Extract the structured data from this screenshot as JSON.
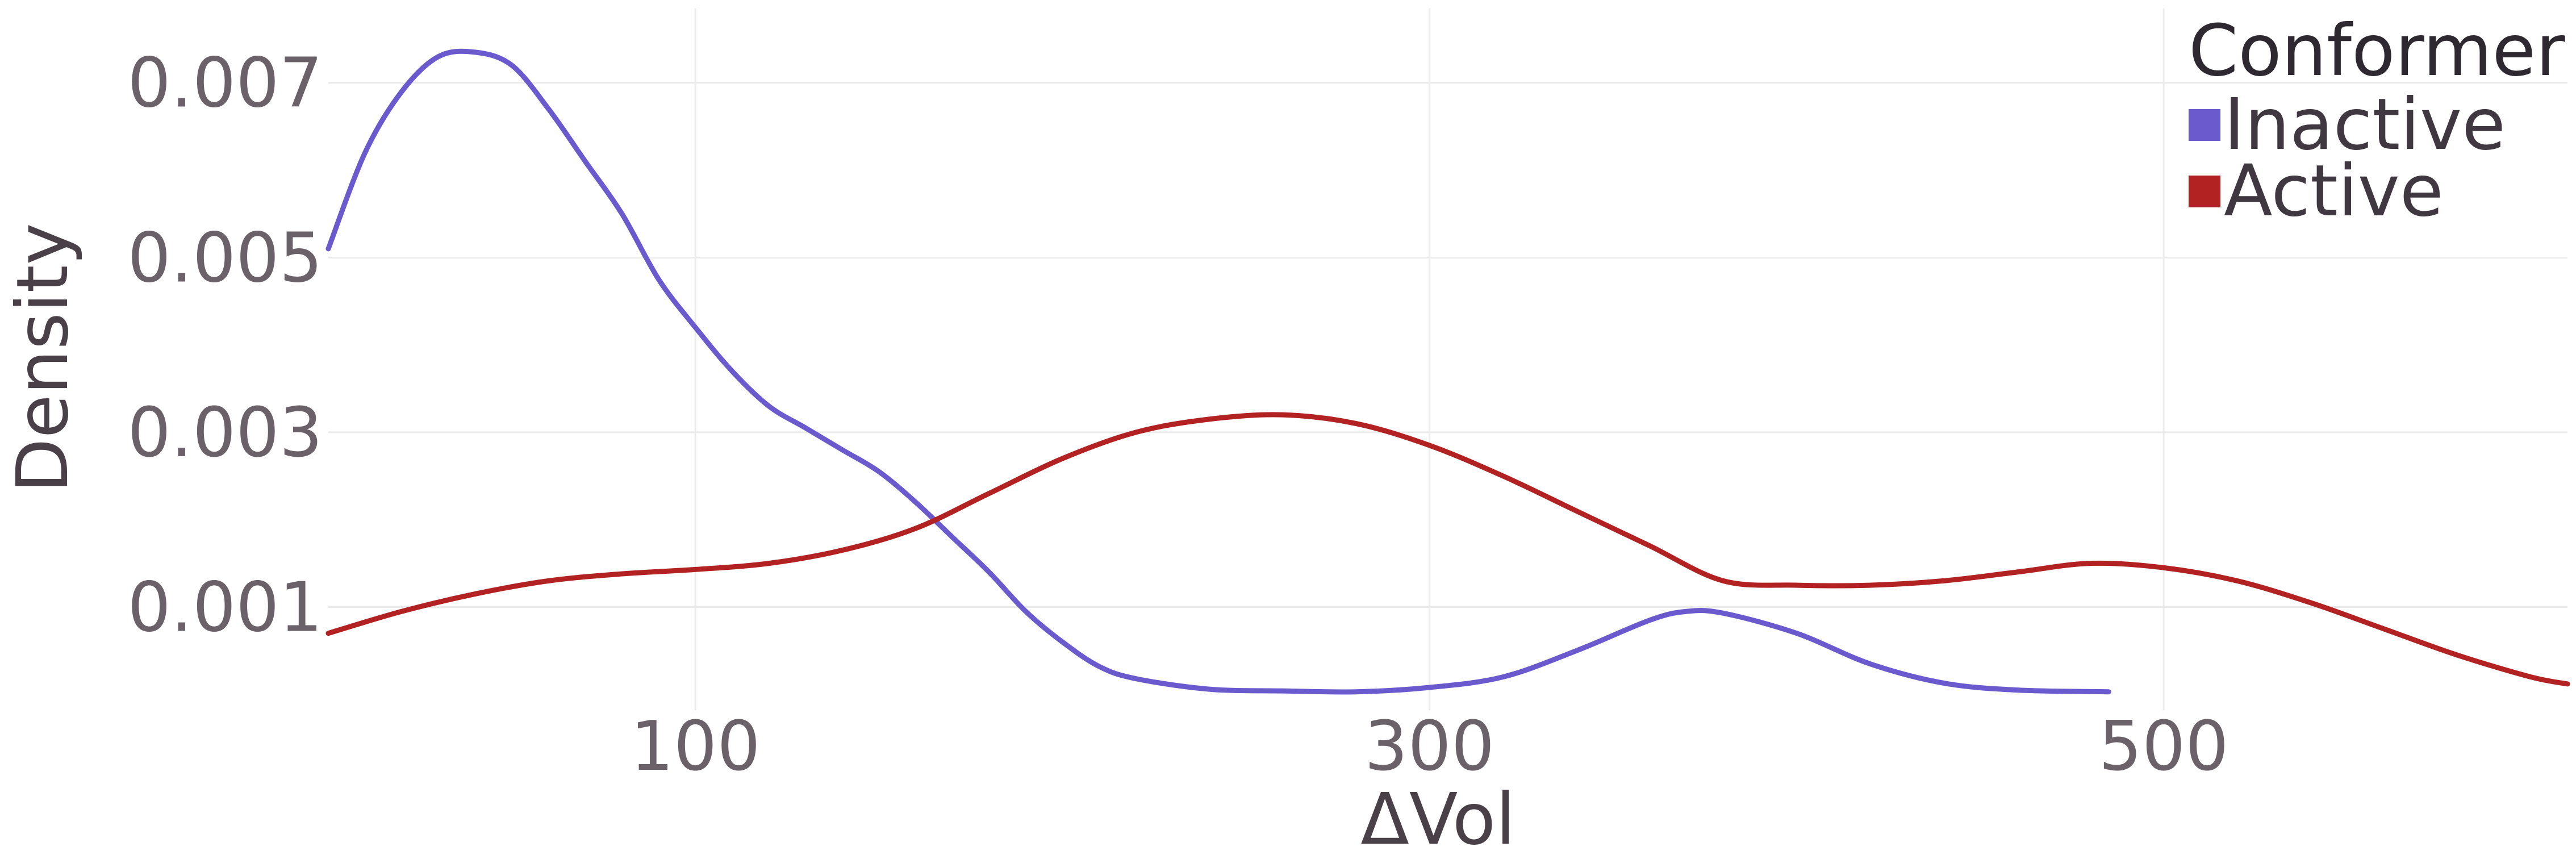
{
  "chart_data": {
    "type": "line",
    "xlabel": "ΔVol",
    "ylabel": "Density",
    "xlim": [
      0,
      610
    ],
    "ylim": [
      -0.00018,
      0.00785
    ],
    "x_ticks": [
      100,
      300,
      500
    ],
    "x_tick_labels": [
      "100",
      "300",
      "500"
    ],
    "y_ticks": [
      0.001,
      0.003,
      0.005,
      0.007
    ],
    "y_tick_labels": [
      "0.001",
      "0.003",
      "0.005",
      "0.007"
    ],
    "grid": true,
    "legend": {
      "title": "Conformer",
      "position": "top-right",
      "entries": [
        {
          "label": "Inactive",
          "color": "#6a5acd"
        },
        {
          "label": "Active",
          "color": "#b22222"
        }
      ]
    },
    "series": [
      {
        "name": "Inactive",
        "color": "#6a5acd",
        "points": [
          [
            0,
            0.0051
          ],
          [
            10,
            0.0062
          ],
          [
            20,
            0.0069
          ],
          [
            30,
            0.0073
          ],
          [
            40,
            0.00735
          ],
          [
            50,
            0.0072
          ],
          [
            60,
            0.0067
          ],
          [
            70,
            0.0061
          ],
          [
            80,
            0.0055
          ],
          [
            90,
            0.00475
          ],
          [
            100,
            0.0042
          ],
          [
            110,
            0.0037
          ],
          [
            120,
            0.0033
          ],
          [
            130,
            0.00305
          ],
          [
            140,
            0.0028
          ],
          [
            150,
            0.00255
          ],
          [
            160,
            0.0022
          ],
          [
            170,
            0.0018
          ],
          [
            180,
            0.0014
          ],
          [
            190,
            0.00095
          ],
          [
            200,
            0.0006
          ],
          [
            210,
            0.00032
          ],
          [
            220,
            0.00018
          ],
          [
            240,
            6e-05
          ],
          [
            260,
            4e-05
          ],
          [
            280,
            3e-05
          ],
          [
            300,
            8e-05
          ],
          [
            320,
            0.0002
          ],
          [
            340,
            0.0005
          ],
          [
            360,
            0.00085
          ],
          [
            370,
            0.00095
          ],
          [
            380,
            0.00093
          ],
          [
            400,
            0.0007
          ],
          [
            420,
            0.00035
          ],
          [
            440,
            0.00013
          ],
          [
            460,
            5e-05
          ],
          [
            485,
            3e-05
          ]
        ]
      },
      {
        "name": "Active",
        "color": "#b22222",
        "points": [
          [
            0,
            0.0007
          ],
          [
            20,
            0.00095
          ],
          [
            40,
            0.00115
          ],
          [
            60,
            0.0013
          ],
          [
            80,
            0.00138
          ],
          [
            100,
            0.00143
          ],
          [
            120,
            0.0015
          ],
          [
            140,
            0.00165
          ],
          [
            160,
            0.0019
          ],
          [
            180,
            0.0023
          ],
          [
            200,
            0.0027
          ],
          [
            220,
            0.003
          ],
          [
            240,
            0.00315
          ],
          [
            260,
            0.0032
          ],
          [
            280,
            0.0031
          ],
          [
            300,
            0.00285
          ],
          [
            320,
            0.0025
          ],
          [
            340,
            0.0021
          ],
          [
            360,
            0.0017
          ],
          [
            380,
            0.0013
          ],
          [
            400,
            0.00125
          ],
          [
            420,
            0.00125
          ],
          [
            440,
            0.0013
          ],
          [
            460,
            0.0014
          ],
          [
            480,
            0.0015
          ],
          [
            500,
            0.00145
          ],
          [
            520,
            0.0013
          ],
          [
            540,
            0.00105
          ],
          [
            560,
            0.00075
          ],
          [
            580,
            0.00045
          ],
          [
            600,
            0.0002
          ],
          [
            610,
            0.00012
          ]
        ]
      }
    ]
  }
}
